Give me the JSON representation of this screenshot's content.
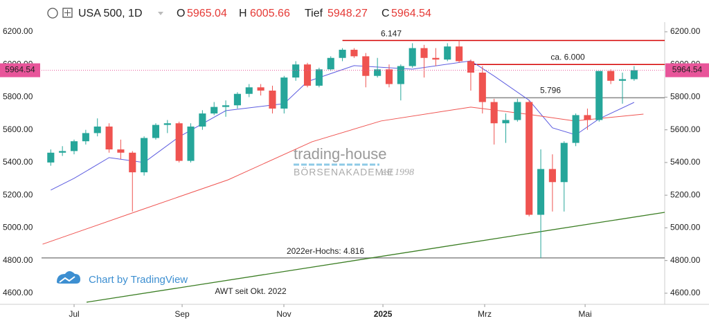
{
  "chart_data": {
    "type": "candlestick",
    "symbol": "USA 500, 1D",
    "header": {
      "open_label": "O",
      "open": 5965.04,
      "high_label": "H",
      "high": 6005.66,
      "low_label": "Tief",
      "low": 5948.27,
      "close_label": "C",
      "close": 5964.54
    },
    "last_price": 5964.54,
    "up_color": "#26a69a",
    "down_color": "#ef5350",
    "x": [
      -2,
      -1,
      0,
      1,
      2,
      3,
      4,
      5,
      6,
      7,
      8,
      9,
      10,
      11,
      12,
      13,
      14,
      15,
      16,
      17,
      18,
      19,
      20,
      21,
      22,
      23,
      24,
      25,
      26,
      27,
      28,
      29,
      30,
      31,
      32,
      33,
      34,
      35,
      36,
      37,
      38,
      39,
      40,
      41,
      42,
      43,
      44,
      45,
      46,
      47,
      48
    ],
    "open": [
      5400,
      5460,
      5470,
      5530,
      5580,
      5620,
      5480,
      5460,
      5340,
      5550,
      5630,
      5640,
      5410,
      5620,
      5700,
      5740,
      5750,
      5820,
      5860,
      5840,
      5730,
      5920,
      6000,
      5870,
      5970,
      6040,
      6090,
      6050,
      5930,
      5970,
      5880,
      5990,
      6100,
      6040,
      6030,
      6110,
      6020,
      5950,
      5770,
      5640,
      5660,
      5770,
      5080,
      5360,
      5280,
      5520,
      5690,
      5660,
      5960,
      5900,
      5910
    ],
    "high": [
      5480,
      5500,
      5540,
      5600,
      5670,
      5640,
      5540,
      5470,
      5560,
      5640,
      5660,
      5650,
      5640,
      5720,
      5770,
      5780,
      5830,
      5880,
      5880,
      5870,
      5930,
      6020,
      6010,
      5980,
      6050,
      6100,
      6100,
      6070,
      6040,
      6000,
      6000,
      6130,
      6120,
      6100,
      6130,
      6147,
      6030,
      5990,
      5790,
      5700,
      5790,
      5780,
      5480,
      5450,
      5530,
      5700,
      5730,
      5960,
      5970,
      5950,
      5990
    ],
    "low": [
      5380,
      5440,
      5450,
      5510,
      5560,
      5460,
      5420,
      5100,
      5320,
      5540,
      5580,
      5400,
      5400,
      5600,
      5690,
      5680,
      5730,
      5800,
      5810,
      5700,
      5700,
      5900,
      5860,
      5860,
      5960,
      6020,
      6040,
      5860,
      5920,
      5860,
      5780,
      5980,
      5920,
      5990,
      6020,
      6010,
      5840,
      5700,
      5510,
      5520,
      5650,
      5070,
      4816,
      5100,
      5100,
      5500,
      5600,
      5650,
      5880,
      5760,
      5900
    ],
    "close": [
      5460,
      5470,
      5530,
      5580,
      5620,
      5480,
      5460,
      5340,
      5550,
      5630,
      5640,
      5410,
      5620,
      5700,
      5740,
      5750,
      5820,
      5860,
      5840,
      5730,
      5920,
      6000,
      5870,
      5970,
      6040,
      6090,
      6050,
      5930,
      5970,
      5880,
      5990,
      6100,
      6040,
      6030,
      6110,
      6020,
      5950,
      5770,
      5640,
      5660,
      5770,
      5080,
      5360,
      5280,
      5520,
      5690,
      5660,
      5960,
      5900,
      5910,
      5964.54
    ],
    "moving_averages": [
      {
        "color": "#5c5ce0",
        "x": [
          -2,
          0,
          3,
          6,
          9,
          13,
          18,
          20,
          24,
          29,
          34,
          36,
          39,
          41,
          43,
          45,
          48
        ],
        "values": [
          5231,
          5303,
          5430,
          5400,
          5557,
          5717,
          5760,
          5895,
          5993,
          5971,
          6022,
          5929,
          5781,
          5612,
          5569,
          5667,
          5768
        ]
      },
      {
        "color": "#ef5350",
        "x": [
          -2.7,
          5.5,
          13.2,
          20.4,
          26.3,
          34,
          38.8,
          42.9,
          48.8
        ],
        "values": [
          4900,
          5104,
          5294,
          5527,
          5654,
          5739,
          5696,
          5654,
          5696
        ]
      }
    ],
    "levels": [
      {
        "label": "6.147",
        "value": 6147,
        "color": "#d50000",
        "x_start": 23
      },
      {
        "label": "ca. 6.000",
        "value": 6000,
        "color": "#d50000",
        "x_start": 34
      },
      {
        "label": "5.796",
        "value": 5796,
        "color": "#888888",
        "x_start": 35.2
      },
      {
        "label": "2022er-Hochs: 4.816",
        "value": 4816,
        "color": "#888888",
        "x_start": -2.79
      }
    ],
    "trendline": {
      "label": "AWT seit Okt. 2022",
      "color": "#3a7d22",
      "x": [
        1.07,
        50.62
      ],
      "values": [
        4545,
        5095
      ]
    },
    "watermark": {
      "brand": "trading-house",
      "sub": "BÖRSENAKADEMIE",
      "est": "est 1998"
    },
    "credit": "Chart by TradingView",
    "xlim": [
      -2.79,
      50.62
    ],
    "ylim": [
      4532,
      6259
    ],
    "xticks": [
      {
        "value": 0,
        "label": "Jul"
      },
      {
        "value": 9.26,
        "label": "Sep"
      },
      {
        "value": 17.98,
        "label": "Nov"
      },
      {
        "value": 26.47,
        "label": "2025"
      },
      {
        "value": 35.19,
        "label": "Mrz"
      },
      {
        "value": 43.8,
        "label": "Mai"
      }
    ],
    "yticks": [
      {
        "value": 4600,
        "label": "4600.00"
      },
      {
        "value": 4800,
        "label": "4800.00"
      },
      {
        "value": 5000,
        "label": "5000.00"
      },
      {
        "value": 5200,
        "label": "5200.00"
      },
      {
        "value": 5400,
        "label": "5400.00"
      },
      {
        "value": 5600,
        "label": "5600.00"
      },
      {
        "value": 5800,
        "label": "5800.00"
      },
      {
        "value": 6000,
        "label": "6000.00"
      },
      {
        "value": 6200,
        "label": "6200.00"
      }
    ]
  }
}
